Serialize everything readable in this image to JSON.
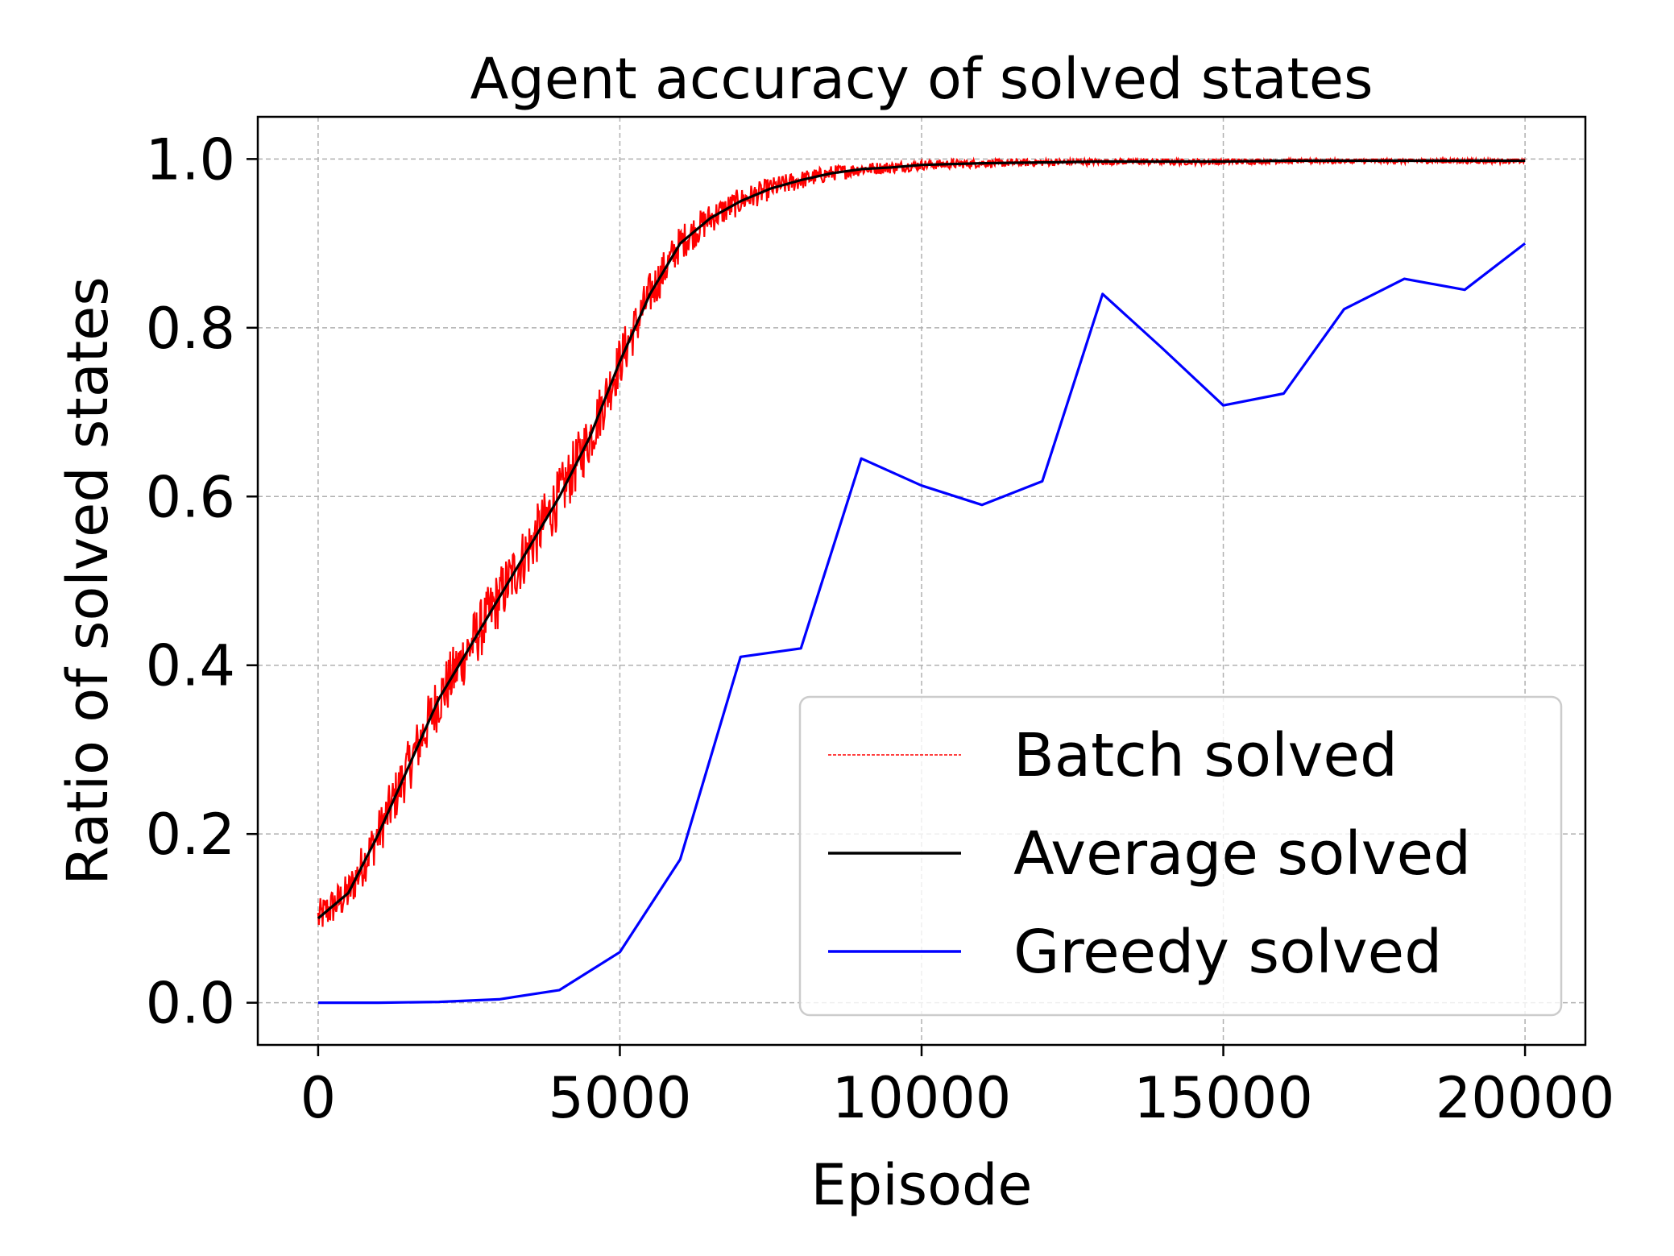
{
  "chart_data": {
    "type": "line",
    "title": "Agent accuracy of solved states",
    "xlabel": "Episode",
    "ylabel": "Ratio of solved states",
    "xlim": [
      -1000,
      21000
    ],
    "ylim": [
      -0.05,
      1.05
    ],
    "xticks": [
      0,
      5000,
      10000,
      15000,
      20000
    ],
    "xtick_labels": [
      "0",
      "5000",
      "10000",
      "15000",
      "20000"
    ],
    "yticks": [
      0.0,
      0.2,
      0.4,
      0.6,
      0.8,
      1.0
    ],
    "ytick_labels": [
      "0.0",
      "0.2",
      "0.4",
      "0.6",
      "0.8",
      "1.0"
    ],
    "grid": true,
    "legend_position": "lower-right",
    "series": [
      {
        "name": "Batch solved",
        "color": "#ff0000",
        "style": "dashed-noisy",
        "x": [
          0,
          500,
          1000,
          1500,
          2000,
          2500,
          3000,
          3500,
          4000,
          4500,
          5000,
          5500,
          6000,
          6500,
          7000,
          7500,
          8000,
          8500,
          9000,
          9500,
          10000,
          11000,
          12000,
          13000,
          14000,
          15000,
          16000,
          17000,
          18000,
          19000,
          20000
        ],
        "y": [
          0.1,
          0.13,
          0.2,
          0.28,
          0.36,
          0.42,
          0.48,
          0.54,
          0.6,
          0.67,
          0.76,
          0.84,
          0.9,
          0.93,
          0.95,
          0.965,
          0.975,
          0.983,
          0.988,
          0.99,
          0.993,
          0.995,
          0.996,
          0.997,
          0.997,
          0.997,
          0.998,
          0.998,
          0.998,
          0.998,
          0.998
        ]
      },
      {
        "name": "Average solved",
        "color": "#000000",
        "style": "solid",
        "x": [
          0,
          500,
          1000,
          1500,
          2000,
          2500,
          3000,
          3500,
          4000,
          4500,
          5000,
          5500,
          6000,
          6500,
          7000,
          7500,
          8000,
          8500,
          9000,
          9500,
          10000,
          11000,
          12000,
          13000,
          14000,
          15000,
          16000,
          17000,
          18000,
          19000,
          20000
        ],
        "y": [
          0.1,
          0.13,
          0.2,
          0.28,
          0.36,
          0.42,
          0.48,
          0.54,
          0.6,
          0.67,
          0.76,
          0.84,
          0.9,
          0.93,
          0.95,
          0.965,
          0.975,
          0.983,
          0.988,
          0.99,
          0.993,
          0.995,
          0.996,
          0.997,
          0.997,
          0.997,
          0.998,
          0.998,
          0.998,
          0.998,
          0.998
        ]
      },
      {
        "name": "Greedy solved",
        "color": "#0000ff",
        "style": "solid",
        "x": [
          0,
          1000,
          2000,
          3000,
          4000,
          5000,
          6000,
          7000,
          8000,
          9000,
          10000,
          11000,
          12000,
          13000,
          14000,
          15000,
          16000,
          17000,
          18000,
          19000,
          20000
        ],
        "y": [
          0.0,
          0.0,
          0.001,
          0.004,
          0.015,
          0.06,
          0.17,
          0.41,
          0.42,
          0.645,
          0.613,
          0.59,
          0.618,
          0.84,
          0.775,
          0.708,
          0.722,
          0.822,
          0.858,
          0.845,
          0.9
        ]
      }
    ]
  }
}
